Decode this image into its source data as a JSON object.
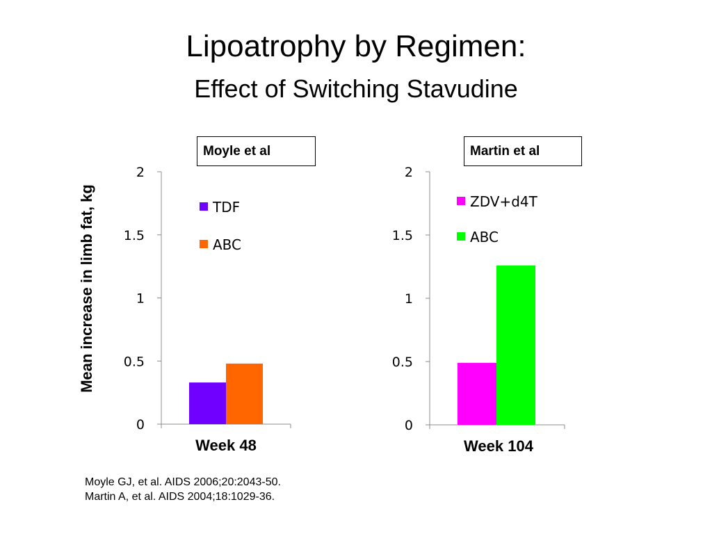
{
  "slide": {
    "title": "Lipoatrophy by Regimen:",
    "subtitle": "Effect of Switching Stavudine",
    "ylabel": "Mean increase in limb fat, kg",
    "references": [
      "Moyle GJ, et al. AIDS 2006;20:2043-50.",
      "Martin A, et al. AIDS 2004;18:1029-36."
    ]
  },
  "chart_data": [
    {
      "type": "bar",
      "title": "Moyle et al",
      "categories": [
        "Week 48"
      ],
      "series": [
        {
          "name": "TDF",
          "values": [
            0.33
          ],
          "color": "#7000FF"
        },
        {
          "name": "ABC",
          "values": [
            0.48
          ],
          "color": "#FF6600"
        }
      ],
      "ylabel": "Mean increase in limb fat, kg",
      "ylim": [
        0,
        2
      ],
      "yticks": [
        "0",
        "0.5",
        "1",
        "1.5",
        "2"
      ],
      "grid": false,
      "legend": "top-left"
    },
    {
      "type": "bar",
      "title": "Martin et al",
      "categories": [
        "Week 104"
      ],
      "series": [
        {
          "name": "ZDV+d4T",
          "values": [
            0.49
          ],
          "color": "#FF00FF"
        },
        {
          "name": "ABC",
          "values": [
            1.26
          ],
          "color": "#00FF00"
        }
      ],
      "ylim": [
        0,
        2
      ],
      "yticks": [
        "0",
        "0.5",
        "1",
        "1.5",
        "2"
      ],
      "grid": false,
      "legend": "top-left"
    }
  ]
}
